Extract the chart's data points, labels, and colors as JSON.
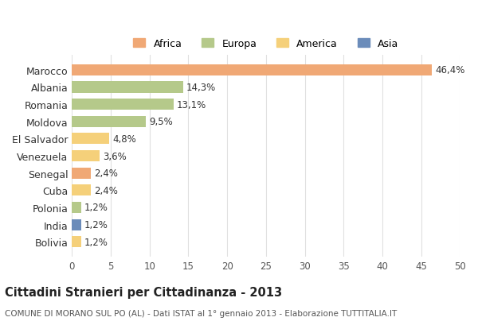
{
  "countries": [
    "Marocco",
    "Albania",
    "Romania",
    "Moldova",
    "El Salvador",
    "Venezuela",
    "Senegal",
    "Cuba",
    "Polonia",
    "India",
    "Bolivia"
  ],
  "values": [
    46.4,
    14.3,
    13.1,
    9.5,
    4.8,
    3.6,
    2.4,
    2.4,
    1.2,
    1.2,
    1.2
  ],
  "labels": [
    "46,4%",
    "14,3%",
    "13,1%",
    "9,5%",
    "4,8%",
    "3,6%",
    "2,4%",
    "2,4%",
    "1,2%",
    "1,2%",
    "1,2%"
  ],
  "colors": [
    "#f0a875",
    "#b5c98a",
    "#b5c98a",
    "#b5c98a",
    "#f5d07a",
    "#f5d07a",
    "#f0a875",
    "#f5d07a",
    "#b5c98a",
    "#6b8cba",
    "#f5d07a"
  ],
  "continents": [
    "Africa",
    "Europa",
    "America",
    "Asia"
  ],
  "legend_colors": [
    "#f0a875",
    "#b5c98a",
    "#f5d07a",
    "#6b8cba"
  ],
  "title": "Cittadini Stranieri per Cittadinanza - 2013",
  "subtitle": "COMUNE DI MORANO SUL PO (AL) - Dati ISTAT al 1° gennaio 2013 - Elaborazione TUTTITALIA.IT",
  "xlim": [
    0,
    50
  ],
  "xticks": [
    0,
    5,
    10,
    15,
    20,
    25,
    30,
    35,
    40,
    45,
    50
  ],
  "background_color": "#ffffff",
  "grid_color": "#e0e0e0"
}
